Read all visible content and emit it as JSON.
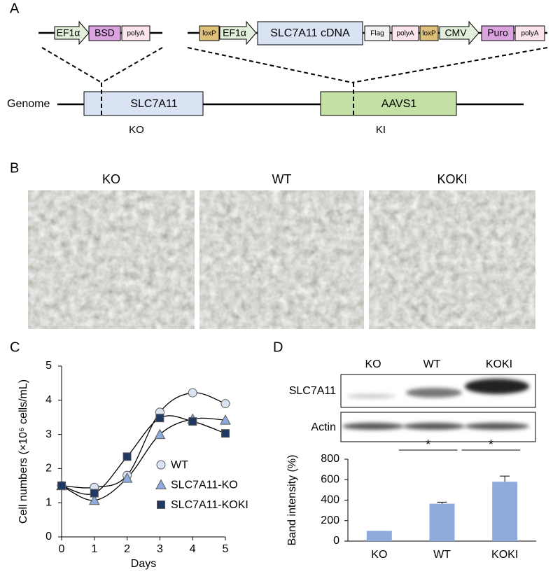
{
  "panel_a": {
    "label": "A",
    "constructs": [
      [
        {
          "text": "EF1α",
          "shape": "arrow",
          "color": "#e2efda"
        },
        {
          "text": "BSD",
          "shape": "box",
          "color": "#dba3e0"
        },
        {
          "text": "polyA",
          "shape": "box",
          "color": "#fbe4ec"
        }
      ],
      [
        {
          "text": "loxP",
          "shape": "box",
          "color": "#dfc07a"
        },
        {
          "text": "EF1α",
          "shape": "arrow",
          "color": "#e2efda"
        },
        {
          "text": "SLC7A11 cDNA",
          "shape": "box",
          "color": "#dae3f3"
        },
        {
          "text": "Flag",
          "shape": "box",
          "color": "#f2f2f2"
        },
        {
          "text": "polyA",
          "shape": "box",
          "color": "#fbe4ec"
        },
        {
          "text": "loxP",
          "shape": "box",
          "color": "#dfc07a"
        },
        {
          "text": "CMV",
          "shape": "arrow",
          "color": "#e2efda"
        },
        {
          "text": "Puro",
          "shape": "box",
          "color": "#dba3e0"
        },
        {
          "text": "polyA",
          "shape": "box",
          "color": "#fbe4ec"
        }
      ]
    ],
    "genome": {
      "label": "Genome",
      "loci": [
        {
          "name": "SLC7A11",
          "edit": "KO",
          "color": "#dae3f3"
        },
        {
          "name": "AAVS1",
          "edit": "KI",
          "color": "#c5e0a5"
        }
      ]
    }
  },
  "panel_b": {
    "label": "B",
    "images": [
      "KO",
      "WT",
      "KOKI"
    ]
  },
  "chart_data": [
    {
      "type": "line",
      "panel_label": "C",
      "smooth": true,
      "x_label": "Days",
      "y_label": "Cell numbers (×10⁶ cells/mL)",
      "x": [
        0,
        1,
        2,
        3,
        4,
        5
      ],
      "series": [
        {
          "name": "WT",
          "color": "#dae3f3",
          "marker": "circle",
          "values": [
            1.5,
            1.45,
            1.8,
            3.65,
            4.22,
            3.9
          ]
        },
        {
          "name": "SLC7A11-KO",
          "color": "#8faadc",
          "marker": "triangle",
          "values": [
            1.5,
            1.07,
            1.72,
            3.0,
            3.45,
            3.42
          ]
        },
        {
          "name": "SLC7A11-KOKI",
          "color": "#203864",
          "marker": "square",
          "values": [
            1.5,
            1.28,
            2.35,
            3.48,
            3.38,
            3.03
          ]
        }
      ],
      "xlim": [
        0,
        5
      ],
      "xticks": [
        0,
        1,
        2,
        3,
        4,
        5
      ],
      "ylim": [
        0,
        5
      ],
      "yticks": [
        0,
        1,
        2,
        3,
        4,
        5
      ]
    },
    {
      "type": "bar",
      "panel_label": "D",
      "blot": {
        "lanes": [
          "KO",
          "WT",
          "KOKI"
        ],
        "rows": [
          "SLC7A11",
          "Actin"
        ]
      },
      "y_label": "Band intensity (%)",
      "categories": [
        "KO",
        "WT",
        "KOKI"
      ],
      "values": [
        100,
        365,
        580
      ],
      "errors": [
        0,
        15,
        55
      ],
      "color": "#8faadc",
      "ylim": [
        0,
        800
      ],
      "yticks": [
        0,
        200,
        400,
        600,
        800
      ],
      "annotations": [
        {
          "between": [
            "KO",
            "WT"
          ],
          "label": "*"
        },
        {
          "between": [
            "WT",
            "KOKI"
          ],
          "label": "*"
        }
      ]
    }
  ]
}
